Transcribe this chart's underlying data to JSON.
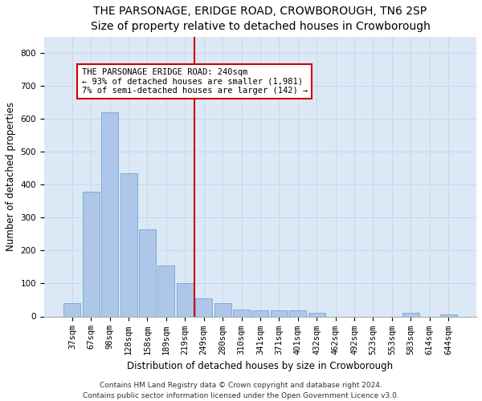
{
  "title": "THE PARSONAGE, ERIDGE ROAD, CROWBOROUGH, TN6 2SP",
  "subtitle": "Size of property relative to detached houses in Crowborough",
  "xlabel": "Distribution of detached houses by size in Crowborough",
  "ylabel": "Number of detached properties",
  "categories": [
    "37sqm",
    "67sqm",
    "98sqm",
    "128sqm",
    "158sqm",
    "189sqm",
    "219sqm",
    "249sqm",
    "280sqm",
    "310sqm",
    "341sqm",
    "371sqm",
    "401sqm",
    "432sqm",
    "462sqm",
    "492sqm",
    "523sqm",
    "553sqm",
    "583sqm",
    "614sqm",
    "644sqm"
  ],
  "values": [
    40,
    380,
    620,
    435,
    265,
    155,
    100,
    55,
    40,
    20,
    18,
    18,
    18,
    10,
    0,
    0,
    0,
    0,
    10,
    0,
    5
  ],
  "bar_color": "#aec6e8",
  "bar_edge_color": "#6fa8d4",
  "grid_color": "#c8d8ea",
  "background_color": "#dce8f5",
  "fig_background": "#ffffff",
  "vline_color": "#cc0000",
  "vline_x": 6.5,
  "annotation_text": "THE PARSONAGE ERIDGE ROAD: 240sqm\n← 93% of detached houses are smaller (1,981)\n7% of semi-detached houses are larger (142) →",
  "annotation_box_color": "#ffffff",
  "annotation_box_edge": "#cc0000",
  "footer_line1": "Contains HM Land Registry data © Crown copyright and database right 2024.",
  "footer_line2": "Contains public sector information licensed under the Open Government Licence v3.0.",
  "ylim": [
    0,
    850
  ],
  "yticks": [
    0,
    100,
    200,
    300,
    400,
    500,
    600,
    700,
    800
  ],
  "title_fontsize": 10,
  "subtitle_fontsize": 9,
  "axis_label_fontsize": 8.5,
  "tick_fontsize": 7.5,
  "annotation_fontsize": 7.5,
  "footer_fontsize": 6.5
}
